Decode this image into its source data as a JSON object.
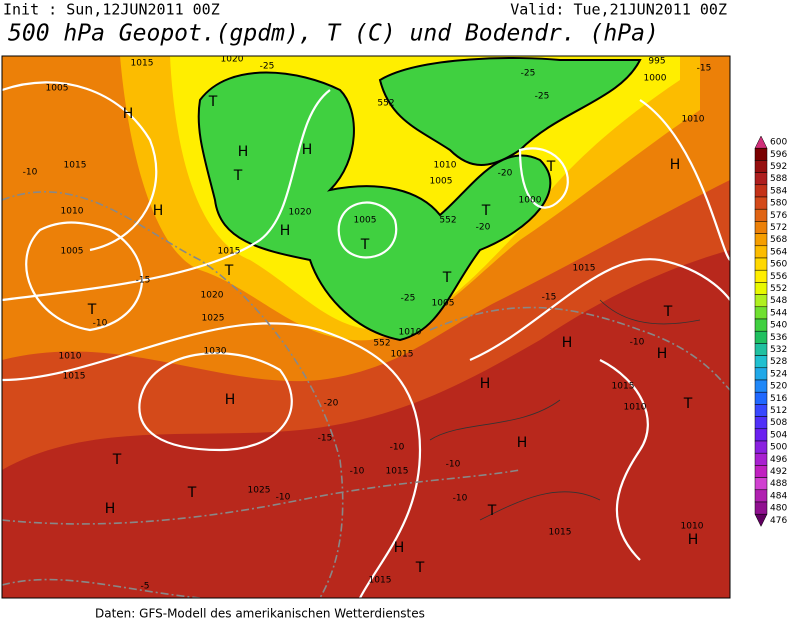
{
  "header": {
    "init": "Init : Sun,12JUN2011 00Z",
    "valid": "Valid: Tue,21JUN2011 00Z",
    "title": "500 hPa Geopot.(gpdm), T (C) und Bodendr. (hPa)"
  },
  "footer": "Daten: GFS-Modell des amerikanischen Wetterdienstes",
  "colorbar": {
    "labels": [
      600,
      596,
      592,
      588,
      584,
      580,
      576,
      572,
      568,
      564,
      560,
      556,
      552,
      548,
      544,
      540,
      536,
      532,
      528,
      524,
      520,
      516,
      512,
      508,
      504,
      500,
      496,
      492,
      488,
      484,
      480,
      476
    ],
    "colors": [
      "#d0307a",
      "#7a0000",
      "#960f0f",
      "#ae1e1e",
      "#c43218",
      "#d44a1a",
      "#e06414",
      "#ec8008",
      "#f59e00",
      "#fcbc00",
      "#ffd800",
      "#ffee00",
      "#e8f800",
      "#b0f020",
      "#70e030",
      "#40d040",
      "#20c060",
      "#20c0a0",
      "#20c0d0",
      "#20a8e8",
      "#2088f8",
      "#2068ff",
      "#3848ff",
      "#5030f8",
      "#6a20f0",
      "#8a20e0",
      "#a820d0",
      "#c020c0",
      "#d040d0",
      "#b020b0",
      "#901090",
      "#600060"
    ]
  },
  "map_labels": [
    "1015",
    "1020",
    "-25",
    "1005",
    "H",
    "T",
    "H",
    "H",
    "T",
    "1015",
    "-10",
    "1010",
    "H",
    "1020",
    "1005",
    "T",
    "H",
    "1015",
    "T",
    "1005",
    "-15",
    "T",
    "-10",
    "1020",
    "1025",
    "-25",
    "1005",
    "T",
    "1010",
    "1015",
    "1030",
    "1010",
    "1015",
    "H",
    "-20",
    "-15",
    "-10",
    "H",
    "H",
    "H",
    "T",
    "-10",
    "H",
    "1015",
    "1010",
    "T",
    "T",
    "T",
    "H",
    "1025",
    "-10",
    "-10",
    "1015",
    "-10",
    "-10",
    "T",
    "1015",
    "H",
    "T",
    "1015",
    "-5",
    "1010",
    "H",
    "1010",
    "1005",
    "552",
    "-20",
    "T",
    "1000",
    "T",
    "-20",
    "1010",
    "H",
    "-15",
    "1000",
    "995",
    "-25",
    "-25",
    "-15",
    "1015",
    "552",
    "552"
  ]
}
